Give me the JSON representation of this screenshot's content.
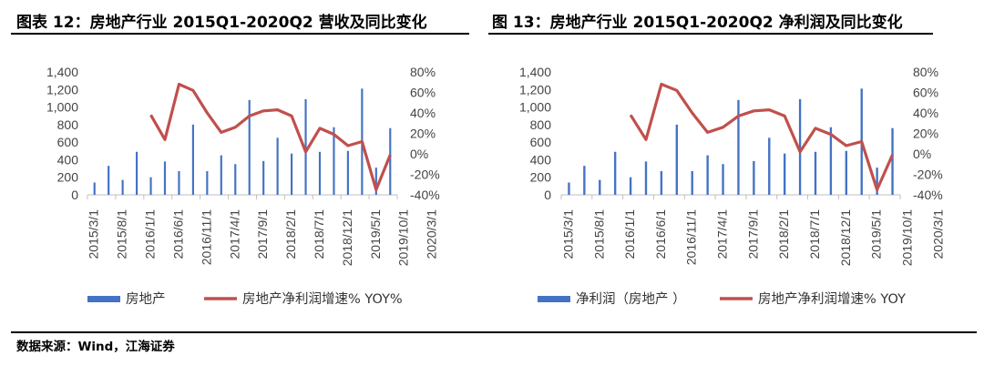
{
  "colors": {
    "bar": "#4472c4",
    "line": "#c0504d"
  },
  "source": "数据来源：Wind，江海证券",
  "chart_data": [
    {
      "type": "bar",
      "title": "图表 12：房地产行业 2015Q1-2020Q2 营收及同比变化",
      "x_tick_labels": [
        "2015/3/1",
        "2015/8/1",
        "2016/1/1",
        "2016/6/1",
        "2016/11/1",
        "2017/4/1",
        "2017/9/1",
        "2018/2/1",
        "2018/7/1",
        "2018/12/1",
        "2019/5/1",
        "2019/10/1",
        "2020/3/1"
      ],
      "left_axis": {
        "ylim": [
          0,
          1400
        ],
        "ticks": [
          "0",
          "200",
          "400",
          "600",
          "800",
          "1,000",
          "1,200",
          "1,400"
        ]
      },
      "right_axis": {
        "ylim": [
          -40,
          80
        ],
        "ticks": [
          "-40%",
          "-20%",
          "0%",
          "20%",
          "40%",
          "60%",
          "80%"
        ]
      },
      "series": [
        {
          "name": "房地产",
          "type": "bar",
          "axis": "left",
          "values": [
            140,
            330,
            170,
            490,
            200,
            380,
            270,
            800,
            270,
            450,
            350,
            1080,
            385,
            650,
            470,
            1090,
            490,
            770,
            500,
            1210,
            310,
            760
          ]
        },
        {
          "name": "房地产净利润增速% YOY%",
          "type": "line",
          "axis": "right",
          "values": [
            null,
            null,
            null,
            null,
            38,
            14,
            68,
            62,
            40,
            21,
            26,
            37,
            42,
            43,
            37,
            2,
            25,
            19,
            8,
            12,
            -35,
            -1
          ]
        }
      ]
    },
    {
      "type": "bar",
      "title": "图 13：房地产行业 2015Q1-2020Q2 净利润及同比变化",
      "x_tick_labels": [
        "2015/3/1",
        "2015/8/1",
        "2016/1/1",
        "2016/6/1",
        "2016/11/1",
        "2017/4/1",
        "2017/9/1",
        "2018/2/1",
        "2018/7/1",
        "2018/12/1",
        "2019/5/1",
        "2019/10/1",
        "2020/3/1"
      ],
      "left_axis": {
        "ylim": [
          0,
          1400
        ],
        "ticks": [
          "0",
          "200",
          "400",
          "600",
          "800",
          "1,000",
          "1,200",
          "1,400"
        ]
      },
      "right_axis": {
        "ylim": [
          -40,
          80
        ],
        "ticks": [
          "-40%",
          "-20%",
          "0%",
          "20%",
          "40%",
          "60%",
          "80%"
        ]
      },
      "series": [
        {
          "name": "净利润（房地产 ）",
          "type": "bar",
          "axis": "left",
          "values": [
            140,
            330,
            170,
            490,
            200,
            380,
            270,
            800,
            270,
            450,
            350,
            1080,
            385,
            650,
            470,
            1090,
            490,
            770,
            500,
            1210,
            310,
            760
          ]
        },
        {
          "name": "房地产净利润增速% YOY",
          "type": "line",
          "axis": "right",
          "values": [
            null,
            null,
            null,
            null,
            38,
            14,
            68,
            62,
            40,
            21,
            26,
            37,
            42,
            43,
            37,
            2,
            25,
            19,
            8,
            12,
            -35,
            -1
          ]
        }
      ]
    }
  ]
}
